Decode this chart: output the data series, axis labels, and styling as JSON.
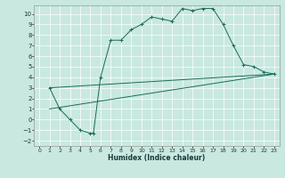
{
  "xlabel": "Humidex (Indice chaleur)",
  "xlim": [
    -0.5,
    23.5
  ],
  "ylim": [
    -2.5,
    10.8
  ],
  "yticks": [
    -2,
    -1,
    0,
    1,
    2,
    3,
    4,
    5,
    6,
    7,
    8,
    9,
    10
  ],
  "xticks": [
    0,
    1,
    2,
    3,
    4,
    5,
    6,
    7,
    8,
    9,
    10,
    11,
    12,
    13,
    14,
    15,
    16,
    17,
    18,
    19,
    20,
    21,
    22,
    23
  ],
  "bg_color": "#c8e8e0",
  "grid_color": "#ffffff",
  "line_color": "#1a6b5a",
  "curve1_x": [
    1,
    2,
    3,
    4,
    5,
    5.3,
    6,
    7,
    8,
    9,
    10,
    11,
    12,
    13,
    14,
    15,
    16,
    17,
    18,
    19,
    20,
    21,
    22,
    23
  ],
  "curve1_y": [
    3.0,
    1.0,
    0.0,
    -1.0,
    -1.3,
    -1.3,
    4.0,
    7.5,
    7.5,
    8.5,
    9.0,
    9.7,
    9.5,
    9.3,
    10.5,
    10.3,
    10.5,
    10.5,
    9.0,
    7.0,
    5.2,
    5.0,
    4.5,
    4.3
  ],
  "line2_x": [
    1,
    23
  ],
  "line2_y": [
    1.0,
    4.3
  ],
  "line3_x": [
    1,
    23
  ],
  "line3_y": [
    3.0,
    4.3
  ]
}
